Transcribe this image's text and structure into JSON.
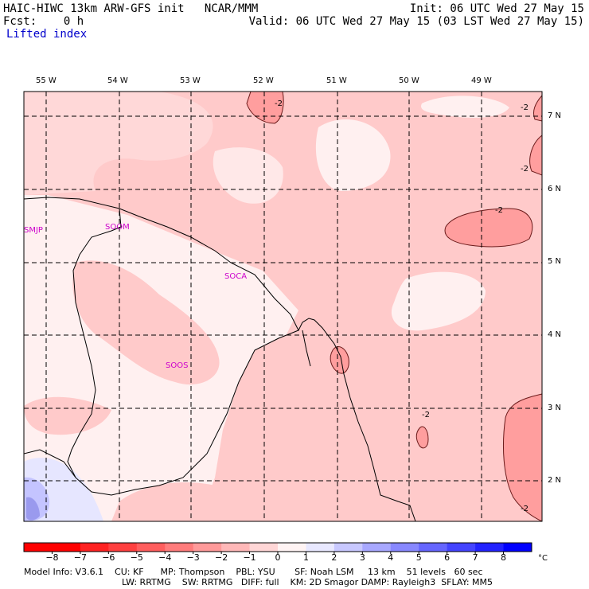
{
  "header": {
    "model_line": "HAIC-HIWC 13km ARW-GFS init   NCAR/MMM",
    "init_line": "Init: 06 UTC Wed 27 May 15",
    "fcst_line": "Fcst:    0 h",
    "valid_line": "Valid: 06 UTC Wed 27 May 15 (03 LST Wed 27 May 15)",
    "field_name": "Lifted index"
  },
  "axes": {
    "lon_ticks": [
      "55 W",
      "54 W",
      "53 W",
      "52 W",
      "51 W",
      "50 W",
      "49 W"
    ],
    "lat_ticks": [
      "7 N",
      "6 N",
      "5 N",
      "4 N",
      "3 N",
      "2 N"
    ]
  },
  "stations": [
    "SMJP",
    "SOOM",
    "SOCA",
    "SOOS"
  ],
  "contour_labels": [
    "-2",
    "-2",
    "-2",
    "-2",
    "-2",
    "-2"
  ],
  "colorbar": {
    "unit": "°C",
    "levels": [
      "−8",
      "−7",
      "−6",
      "−5",
      "−4",
      "−3",
      "−2",
      "−1",
      "0",
      "1",
      "2",
      "3",
      "4",
      "5",
      "6",
      "7",
      "8"
    ],
    "colors": [
      "#ff0000",
      "#ff2222",
      "#ff4040",
      "#ff5e5e",
      "#ff7c7c",
      "#ff9a9a",
      "#ffb8b8",
      "#ffd6d6",
      "#fff4f4",
      "#e8e8ff",
      "#c8c8ff",
      "#a8a8ff",
      "#8888ff",
      "#6666ff",
      "#4444ff",
      "#2222ff",
      "#0000ff"
    ]
  },
  "footer": {
    "line1": "Model Info: V3.6.1    CU: KF      MP: Thompson    PBL: YSU       SF: Noah LSM     13 km    51 levels   60 sec",
    "line2": "LW: RRTMG    SW: RRTMG   DIFF: full    KM: 2D Smagor DAMP: Rayleigh3  SFLAY: MM5"
  }
}
